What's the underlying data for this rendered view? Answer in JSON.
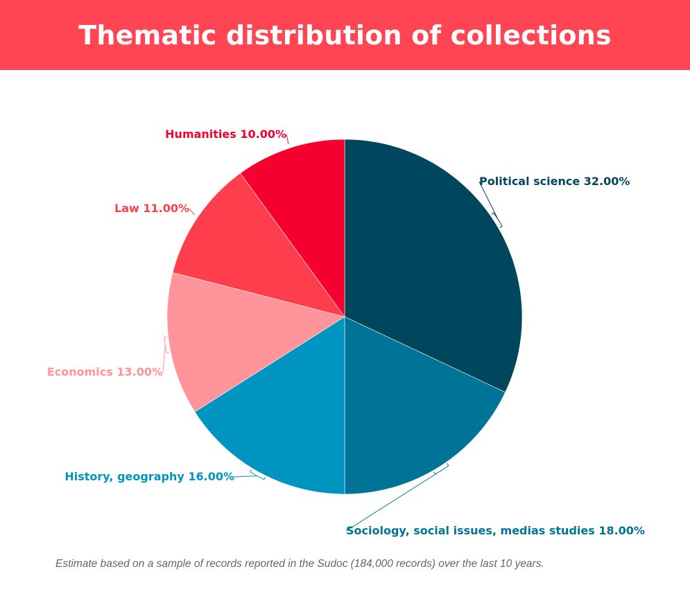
{
  "header": {
    "title": "Thematic distribution of collections",
    "background": "#ff4553"
  },
  "chart_data": {
    "type": "pie",
    "title": "Thematic distribution of collections",
    "slices": [
      {
        "label": "Political science",
        "value": 32.0,
        "display": "32.00%",
        "color": "#00475e"
      },
      {
        "label": "Sociology, social issues, medias studies",
        "value": 18.0,
        "display": "18.00%",
        "color": "#007496"
      },
      {
        "label": "History, geography",
        "value": 16.0,
        "display": "16.00%",
        "color": "#0095c1"
      },
      {
        "label": "Economics",
        "value": 13.0,
        "display": "13.00%",
        "color": "#ff949a"
      },
      {
        "label": "Law",
        "value": 11.0,
        "display": "11.00%",
        "color": "#ff3e4d"
      },
      {
        "label": "Humanities",
        "value": 10.0,
        "display": "10.00%",
        "color": "#f5002f"
      }
    ],
    "legend": "none"
  },
  "footnote": {
    "text": "Estimate based on a sample of records reported in the Sudoc (184,000 records) over the last 10 years."
  }
}
